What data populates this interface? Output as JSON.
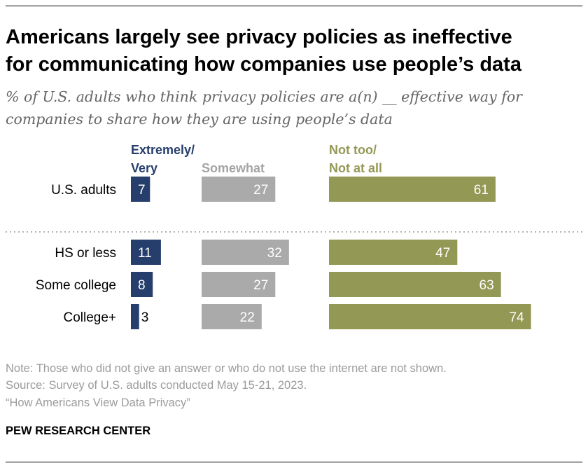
{
  "title_line1": "Americans largely see privacy policies as ineffective",
  "title_line2": "for communicating how companies use people’s data",
  "subtitle_line1": "% of U.S. adults who think privacy policies are a(n) __ effective way for",
  "subtitle_line2": "companies to share how they are using people’s data",
  "colors": {
    "extremely_very": "#263e6b",
    "somewhat": "#aaaaaa",
    "not_too": "#949855"
  },
  "chart_data": {
    "type": "bar",
    "orientation": "horizontal",
    "stacked": false,
    "grid": false,
    "categories": [
      "U.S. adults",
      "HS or less",
      "Some college",
      "College+"
    ],
    "series": [
      {
        "name_lines": [
          "Extremely/",
          "Very"
        ],
        "values": [
          7,
          11,
          8,
          3
        ]
      },
      {
        "name_lines": [
          "Somewhat"
        ],
        "values": [
          27,
          32,
          27,
          22
        ]
      },
      {
        "name_lines": [
          "Not too/",
          "Not at all"
        ],
        "values": [
          61,
          47,
          63,
          74
        ]
      }
    ]
  },
  "note": "Note: Those who did not give an answer or who do not use the internet are not shown.",
  "source": "Source: Survey of U.S. adults conducted May 15-21, 2023.",
  "report": "“How Americans View Data Privacy”",
  "brand": "PEW RESEARCH CENTER"
}
